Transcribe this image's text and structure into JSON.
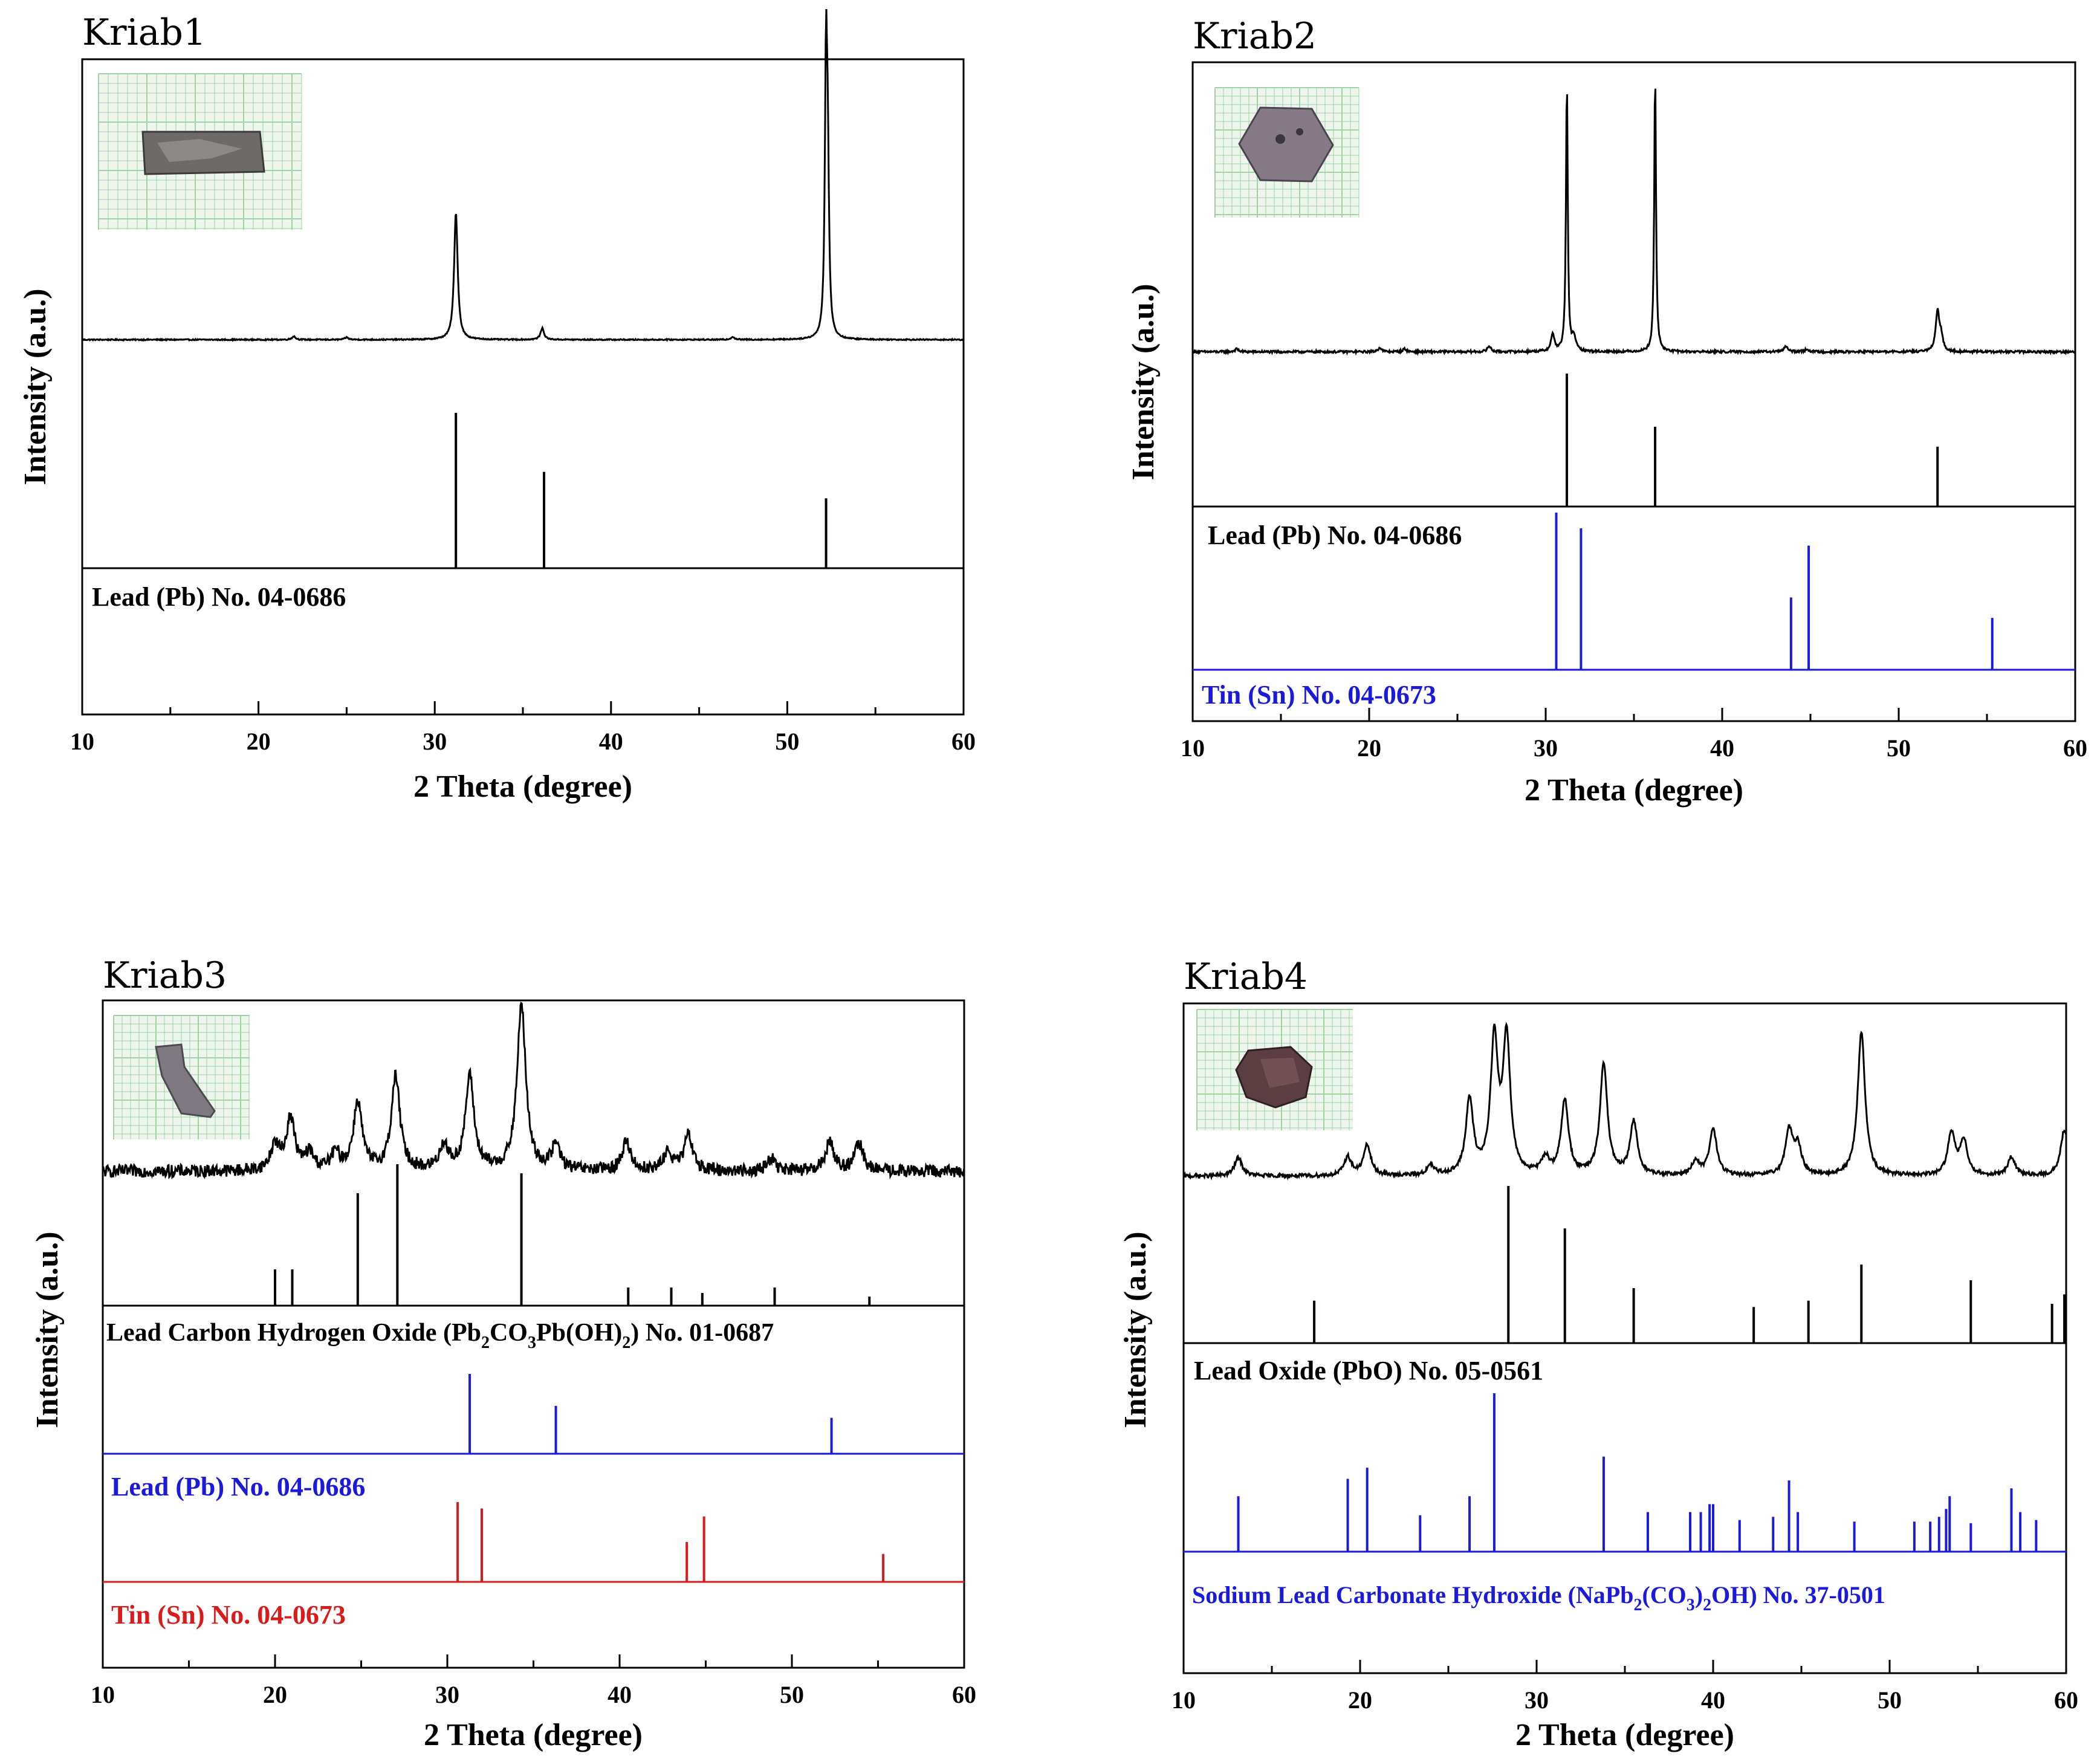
{
  "colors": {
    "black": "#000000",
    "blue": "#1a1ad8",
    "red": "#d81c1c",
    "grid_bg": "#eef5ec",
    "grid_line": "#9fd3a3"
  },
  "chart_data": [
    {
      "type": "line",
      "title": "Kriab1",
      "xlabel": "2 Theta (degree)",
      "ylabel": "Intensity (a.u.)",
      "xlim": [
        10,
        60
      ],
      "xticks": [
        "10",
        "20",
        "30",
        "40",
        "50",
        "60"
      ],
      "inset": "sample-photo",
      "pattern": {
        "name": "Kriab1 XRD pattern",
        "peaks": [
          [
            22.0,
            0.012
          ],
          [
            25.0,
            0.008
          ],
          [
            31.2,
            0.45
          ],
          [
            36.1,
            0.04
          ],
          [
            46.9,
            0.01
          ],
          [
            52.2,
            0.96
          ],
          [
            52.3,
            0.5
          ]
        ],
        "noise": 0.002,
        "width": 0.12
      },
      "references": [
        {
          "label_text": "Lead (Pb)  No. 04-0686",
          "color": "black",
          "peaks": [
            [
              31.2,
              1.0
            ],
            [
              36.2,
              0.62
            ],
            [
              52.2,
              0.45
            ]
          ]
        }
      ]
    },
    {
      "type": "line",
      "title": "Kriab2",
      "xlabel": "2 Theta (degree)",
      "ylabel": "Intensity (a.u.)",
      "xlim": [
        10,
        60
      ],
      "xticks": [
        "10",
        "20",
        "30",
        "40",
        "50",
        "60"
      ],
      "inset": "sample-photo",
      "pattern": {
        "name": "Kriab2 XRD pattern",
        "peaks": [
          [
            12.5,
            0.01
          ],
          [
            20.6,
            0.015
          ],
          [
            22.0,
            0.01
          ],
          [
            26.8,
            0.02
          ],
          [
            30.4,
            0.06
          ],
          [
            31.2,
            0.96
          ],
          [
            31.6,
            0.05
          ],
          [
            36.2,
            0.99
          ],
          [
            43.6,
            0.02
          ],
          [
            44.8,
            0.01
          ],
          [
            52.2,
            0.14
          ],
          [
            52.4,
            0.05
          ]
        ],
        "noise": 0.004,
        "width": 0.12
      },
      "references": [
        {
          "label_text": "Lead (Pb)  No. 04-0686",
          "color": "black",
          "peaks": [
            [
              31.2,
              1.0
            ],
            [
              36.2,
              0.6
            ],
            [
              52.2,
              0.45
            ]
          ]
        },
        {
          "label_text": "Tin (Sn) No. 04-0673",
          "color": "blue",
          "peaks": [
            [
              30.6,
              1.0
            ],
            [
              32.0,
              0.9
            ],
            [
              43.9,
              0.46
            ],
            [
              44.9,
              0.79
            ],
            [
              55.3,
              0.33
            ]
          ]
        }
      ]
    },
    {
      "type": "line",
      "title": "Kriab3",
      "xlabel": "2 Theta (degree)",
      "ylabel": "Intensity (a.u.)",
      "xlim": [
        10,
        60
      ],
      "xticks": [
        "10",
        "20",
        "30",
        "40",
        "50",
        "60"
      ],
      "inset": "sample-photo",
      "pattern": {
        "name": "Kriab3 XRD pattern",
        "peaks": [
          [
            20.0,
            0.12
          ],
          [
            20.9,
            0.25
          ],
          [
            22.0,
            0.08
          ],
          [
            23.5,
            0.08
          ],
          [
            24.8,
            0.33
          ],
          [
            27.0,
            0.45
          ],
          [
            29.8,
            0.12
          ],
          [
            31.3,
            0.45
          ],
          [
            34.3,
            0.8
          ],
          [
            36.3,
            0.12
          ],
          [
            40.4,
            0.14
          ],
          [
            42.8,
            0.09
          ],
          [
            44.0,
            0.17
          ],
          [
            48.8,
            0.06
          ],
          [
            52.2,
            0.14
          ],
          [
            53.9,
            0.13
          ]
        ],
        "noise": 0.03,
        "width": 0.3
      },
      "references": [
        {
          "label_text": "Lead Carbon Hydrogen Oxide (Pb",
          "label_parts": [
            {
              "t": "Lead Carbon Hydrogen Oxide (Pb"
            },
            {
              "t": "2",
              "sub": true
            },
            {
              "t": "CO"
            },
            {
              "t": "3",
              "sub": true
            },
            {
              "t": "Pb(OH)"
            },
            {
              "t": "2",
              "sub": true
            },
            {
              "t": ")  No. 01-0687"
            }
          ],
          "color": "black",
          "peaks": [
            [
              20.0,
              0.2
            ],
            [
              21.0,
              0.2
            ],
            [
              24.8,
              0.62
            ],
            [
              27.1,
              0.78
            ],
            [
              34.3,
              0.73
            ],
            [
              40.5,
              0.1
            ],
            [
              43.0,
              0.1
            ],
            [
              44.8,
              0.07
            ],
            [
              49.0,
              0.1
            ],
            [
              54.5,
              0.05
            ]
          ]
        },
        {
          "label_text": "Lead (Pb)  No. 04-0686",
          "color": "blue",
          "peaks": [
            [
              31.3,
              1.0
            ],
            [
              36.3,
              0.6
            ],
            [
              52.3,
              0.45
            ]
          ]
        },
        {
          "label_text": "Tin (Sn)  No. 04-0673",
          "color": "red",
          "peaks": [
            [
              30.6,
              1.0
            ],
            [
              32.0,
              0.92
            ],
            [
              43.9,
              0.5
            ],
            [
              44.9,
              0.82
            ],
            [
              55.3,
              0.35
            ]
          ]
        }
      ]
    },
    {
      "type": "line",
      "title": "Kriab4",
      "xlabel": "2 Theta (degree)",
      "ylabel": "Intensity (a.u.)",
      "xlim": [
        10,
        60
      ],
      "xticks": [
        "10",
        "20",
        "30",
        "40",
        "50",
        "60"
      ],
      "inset": "sample-photo",
      "pattern": {
        "name": "Kriab4 XRD pattern",
        "peaks": [
          [
            13.1,
            0.08
          ],
          [
            19.3,
            0.08
          ],
          [
            20.4,
            0.13
          ],
          [
            24.0,
            0.04
          ],
          [
            26.2,
            0.32
          ],
          [
            27.6,
            0.57
          ],
          [
            28.3,
            0.58
          ],
          [
            30.5,
            0.07
          ],
          [
            31.6,
            0.32
          ],
          [
            33.8,
            0.48
          ],
          [
            35.5,
            0.23
          ],
          [
            39.0,
            0.06
          ],
          [
            40.0,
            0.2
          ],
          [
            44.3,
            0.19
          ],
          [
            44.8,
            0.12
          ],
          [
            48.4,
            0.62
          ],
          [
            53.5,
            0.18
          ],
          [
            54.2,
            0.15
          ],
          [
            56.9,
            0.08
          ],
          [
            59.9,
            0.2
          ]
        ],
        "noise": 0.008,
        "width": 0.25
      },
      "references": [
        {
          "label_text": "Lead Oxide (PbO)  No. 05-0561",
          "color": "black",
          "peaks": [
            [
              17.4,
              0.27
            ],
            [
              28.4,
              1.0
            ],
            [
              31.6,
              0.73
            ],
            [
              35.5,
              0.35
            ],
            [
              42.3,
              0.23
            ],
            [
              45.4,
              0.27
            ],
            [
              48.4,
              0.5
            ],
            [
              54.6,
              0.4
            ],
            [
              59.2,
              0.25
            ],
            [
              59.9,
              0.31
            ]
          ]
        },
        {
          "label_text": "Sodium Lead Carbonate Hydroxide (NaPb",
          "label_parts": [
            {
              "t": "Sodium Lead Carbonate Hydroxide (NaPb"
            },
            {
              "t": "2",
              "sub": true
            },
            {
              "t": "(CO"
            },
            {
              "t": "3",
              "sub": true
            },
            {
              "t": ")"
            },
            {
              "t": "2",
              "sub": true
            },
            {
              "t": "OH)   No. 37-0501"
            }
          ],
          "color": "blue",
          "peaks": [
            [
              13.1,
              0.35
            ],
            [
              19.3,
              0.46
            ],
            [
              20.4,
              0.53
            ],
            [
              23.4,
              0.23
            ],
            [
              26.2,
              0.35
            ],
            [
              27.6,
              1.0
            ],
            [
              33.8,
              0.6
            ],
            [
              36.3,
              0.25
            ],
            [
              38.7,
              0.25
            ],
            [
              39.3,
              0.25
            ],
            [
              39.8,
              0.3
            ],
            [
              40.0,
              0.3
            ],
            [
              41.5,
              0.2
            ],
            [
              43.4,
              0.22
            ],
            [
              44.3,
              0.45
            ],
            [
              44.8,
              0.25
            ],
            [
              48.0,
              0.19
            ],
            [
              51.4,
              0.19
            ],
            [
              52.3,
              0.19
            ],
            [
              52.8,
              0.22
            ],
            [
              53.2,
              0.27
            ],
            [
              53.4,
              0.35
            ],
            [
              54.6,
              0.18
            ],
            [
              56.9,
              0.4
            ],
            [
              57.4,
              0.25
            ],
            [
              58.3,
              0.2
            ]
          ]
        }
      ]
    }
  ]
}
